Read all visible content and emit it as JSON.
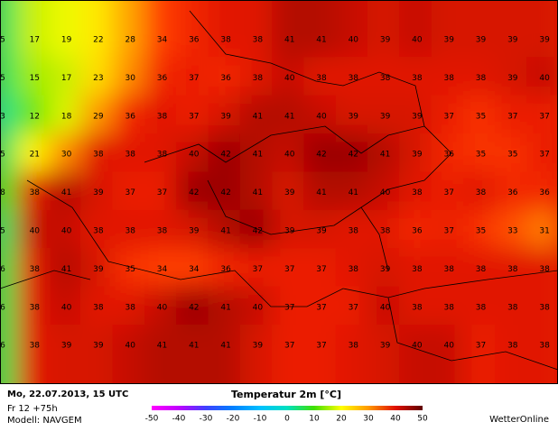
{
  "map": {
    "temperatures": [
      [
        5,
        17,
        19,
        22,
        28,
        34,
        36,
        38,
        38,
        41,
        41,
        40,
        39,
        40,
        39,
        39,
        39,
        39
      ],
      [
        5,
        15,
        17,
        23,
        30,
        36,
        37,
        36,
        38,
        40,
        38,
        38,
        38,
        38,
        38,
        38,
        39,
        40
      ],
      [
        3,
        12,
        18,
        29,
        36,
        38,
        37,
        39,
        41,
        41,
        40,
        39,
        39,
        39,
        37,
        35,
        37,
        37
      ],
      [
        5,
        21,
        30,
        38,
        38,
        38,
        40,
        42,
        41,
        40,
        42,
        42,
        41,
        39,
        36,
        35,
        35,
        37
      ],
      [
        8,
        38,
        41,
        39,
        37,
        37,
        42,
        42,
        41,
        39,
        41,
        41,
        40,
        38,
        37,
        38,
        36,
        36
      ],
      [
        5,
        40,
        40,
        38,
        38,
        38,
        39,
        41,
        42,
        39,
        39,
        38,
        38,
        36,
        37,
        35,
        33,
        31
      ],
      [
        6,
        38,
        41,
        39,
        35,
        34,
        34,
        36,
        37,
        37,
        37,
        38,
        39,
        38,
        38,
        38,
        38,
        38
      ],
      [
        6,
        38,
        40,
        38,
        38,
        40,
        42,
        41,
        40,
        37,
        37,
        37,
        40,
        38,
        38,
        38,
        38,
        38
      ],
      [
        6,
        38,
        39,
        39,
        40,
        41,
        41,
        41,
        39,
        37,
        37,
        38,
        39,
        40,
        40,
        37,
        38,
        38
      ]
    ]
  },
  "footer": {
    "date": "Mo, 22.07.2013, 15 UTC",
    "run": "Fr 12 +75h",
    "model": "Modell: NAVGEM",
    "brand": "WetterOnline"
  },
  "legend": {
    "title": "Temperatur 2m [°C]",
    "ticks": [
      -50,
      -40,
      -30,
      -20,
      -10,
      0,
      10,
      20,
      30,
      40,
      50
    ]
  }
}
